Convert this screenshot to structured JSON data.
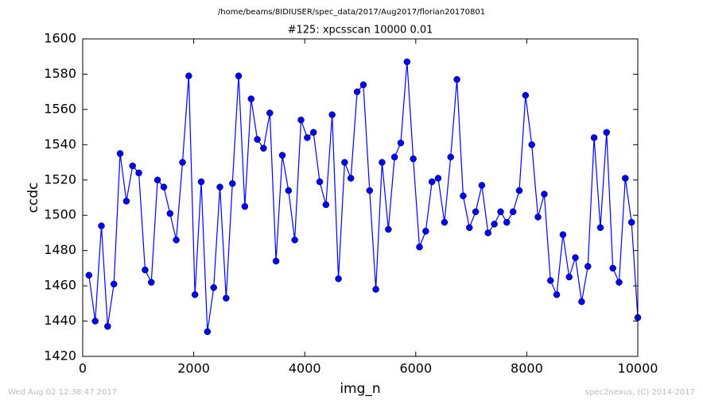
{
  "chart_data": {
    "type": "line",
    "suptitle": "/home/beams/8IDIUSER/spec_data/2017/Aug2017/florian20170801",
    "title": "#125: xpcsscan 10000 0.01",
    "xlabel": "img_n",
    "ylabel": "ccdc",
    "footer_left": "Wed Aug 02 12:38:47 2017",
    "footer_right": "spec2nexus, (C) 2014-2017",
    "x": [
      112,
      225,
      337,
      449,
      562,
      674,
      787,
      899,
      1011,
      1124,
      1236,
      1348,
      1461,
      1573,
      1685,
      1798,
      1910,
      2022,
      2135,
      2247,
      2360,
      2472,
      2584,
      2697,
      2809,
      2921,
      3034,
      3146,
      3258,
      3371,
      3483,
      3596,
      3708,
      3820,
      3933,
      4045,
      4157,
      4270,
      4382,
      4494,
      4607,
      4719,
      4831,
      4944,
      5056,
      5169,
      5281,
      5393,
      5506,
      5618,
      5730,
      5843,
      5955,
      6067,
      6180,
      6292,
      6404,
      6517,
      6629,
      6742,
      6854,
      6966,
      7079,
      7191,
      7303,
      7416,
      7528,
      7640,
      7753,
      7865,
      7978,
      8090,
      8202,
      8315,
      8427,
      8539,
      8652,
      8764,
      8876,
      8989,
      9101,
      9213,
      9326,
      9438,
      9551,
      9663,
      9775,
      9888,
      10000
    ],
    "series": [
      {
        "name": "ccdc",
        "color": "#0000ff",
        "values": [
          1466,
          1440,
          1494,
          1437,
          1461,
          1535,
          1508,
          1528,
          1524,
          1469,
          1462,
          1520,
          1516,
          1501,
          1486,
          1530,
          1579,
          1455,
          1519,
          1434,
          1459,
          1516,
          1453,
          1518,
          1579,
          1505,
          1566,
          1543,
          1538,
          1558,
          1474,
          1534,
          1514,
          1486,
          1554,
          1544,
          1547,
          1519,
          1506,
          1557,
          1464,
          1530,
          1521,
          1570,
          1574,
          1514,
          1458,
          1530,
          1492,
          1533,
          1541,
          1587,
          1532,
          1482,
          1491,
          1519,
          1521,
          1496,
          1533,
          1577,
          1511,
          1493,
          1502,
          1517,
          1490,
          1495,
          1502,
          1496,
          1502,
          1514,
          1568,
          1540,
          1499,
          1512,
          1463,
          1455,
          1489,
          1465,
          1476,
          1451,
          1471,
          1544,
          1493,
          1547,
          1470,
          1462,
          1521,
          1496,
          1442
        ]
      }
    ],
    "xlim": [
      0,
      10000
    ],
    "xticks": [
      0,
      2000,
      4000,
      6000,
      8000,
      10000
    ],
    "ylim": [
      1420,
      1600
    ],
    "yticks": [
      1420,
      1440,
      1460,
      1480,
      1500,
      1520,
      1540,
      1560,
      1580,
      1600
    ],
    "grid": false
  }
}
